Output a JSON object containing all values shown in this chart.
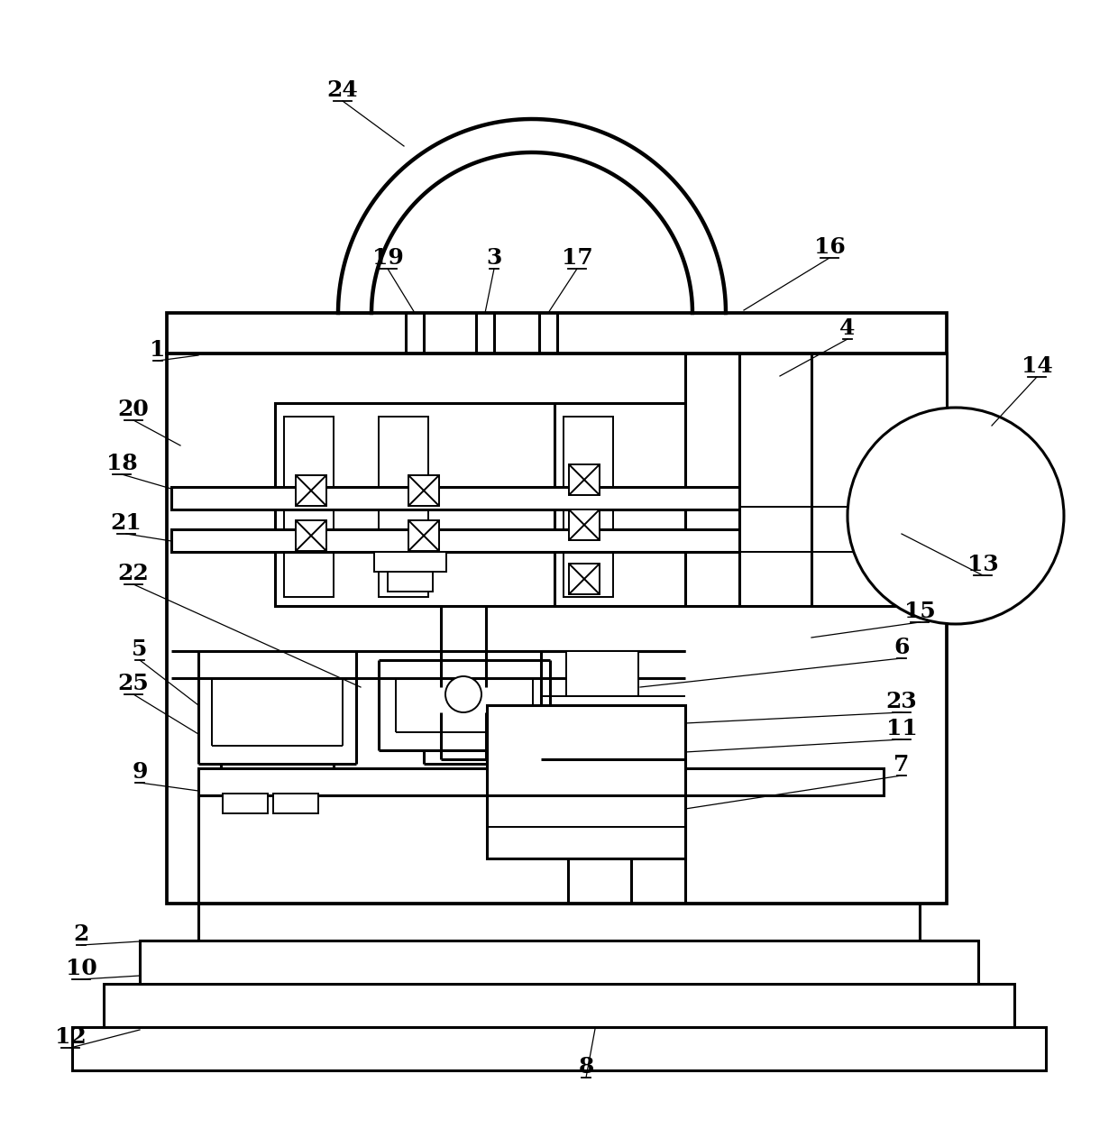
{
  "bg": "#ffffff",
  "lc": "#000000",
  "lw": 2.2,
  "tlw": 1.4,
  "fig_w": 12.4,
  "fig_h": 12.62,
  "label_fs": 18
}
